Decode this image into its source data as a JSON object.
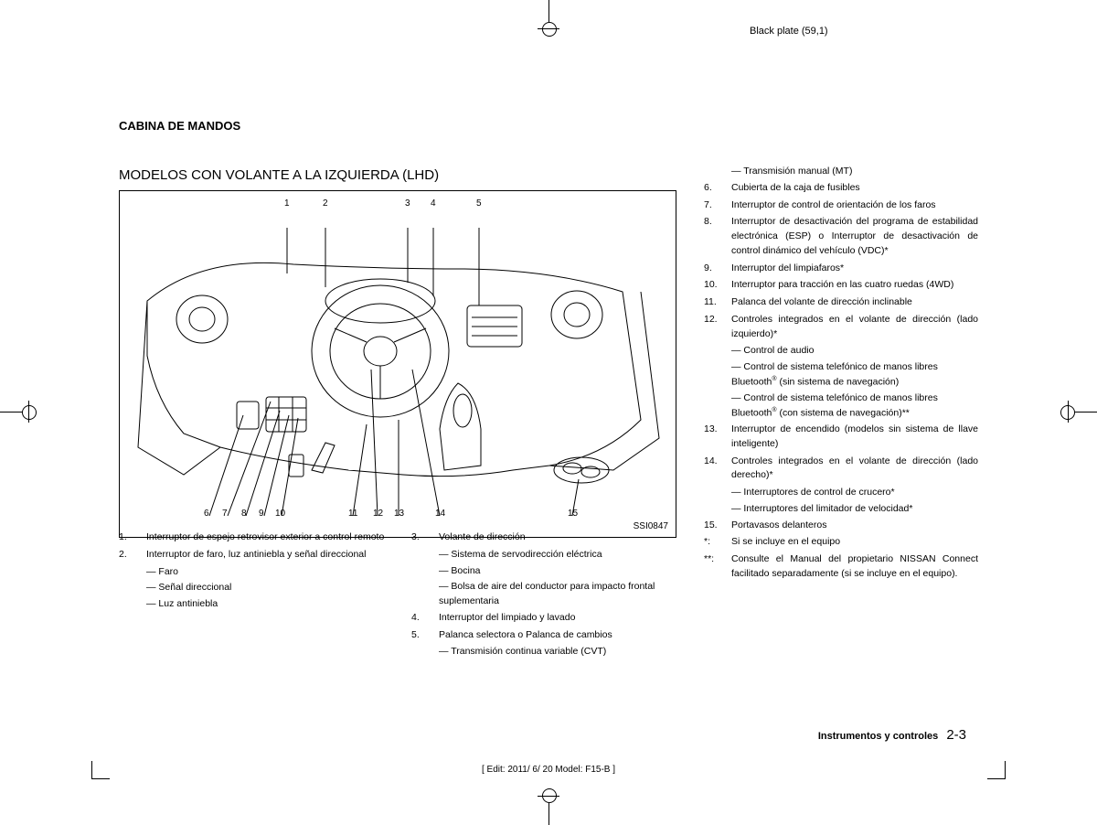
{
  "header": {
    "black_plate": "Black plate (59,1)"
  },
  "titles": {
    "section": "CABINA DE MANDOS",
    "subsection": "MODELOS CON VOLANTE A LA IZQUIERDA (LHD)"
  },
  "figure": {
    "caption": "SSI0847",
    "top_callouts": [
      "1",
      "2",
      "3",
      "4",
      "5"
    ],
    "bottom_callouts": [
      "6",
      "7",
      "8",
      "9",
      "10",
      "11",
      "12",
      "13",
      "14",
      "15"
    ]
  },
  "legend_left": [
    {
      "num": "1.",
      "text": "Interruptor de espejo retrovisor exterior a control remoto"
    },
    {
      "num": "2.",
      "text": "Interruptor de faro, luz antiniebla y señal direccional",
      "subs": [
        "Faro",
        "Señal direccional",
        "Luz antiniebla"
      ]
    }
  ],
  "legend_mid": [
    {
      "num": "3.",
      "text": "Volante de dirección",
      "subs": [
        "Sistema de servodirección eléctrica",
        "Bocina",
        "Bolsa de aire del conductor para impacto frontal suplementaria"
      ]
    },
    {
      "num": "4.",
      "text": "Interruptor del limpiado y lavado"
    },
    {
      "num": "5.",
      "text": "Palanca selectora o Palanca de cambios",
      "subs": [
        "Transmisión continua variable (CVT)"
      ]
    }
  ],
  "legend_right": [
    {
      "num": "",
      "text": "",
      "subs": [
        "Transmisión manual (MT)"
      ]
    },
    {
      "num": "6.",
      "text": "Cubierta de la caja de fusibles"
    },
    {
      "num": "7.",
      "text": "Interruptor de control de orientación de los faros"
    },
    {
      "num": "8.",
      "text": "Interruptor de desactivación del programa de estabilidad electrónica (ESP) o Interruptor de desactivación de control dinámico del vehículo (VDC)*"
    },
    {
      "num": "9.",
      "text": "Interruptor del limpiafaros*"
    },
    {
      "num": "10.",
      "text": "Interruptor para tracción en las cuatro ruedas (4WD)"
    },
    {
      "num": "11.",
      "text": "Palanca del volante de dirección inclinable"
    },
    {
      "num": "12.",
      "text": "Controles integrados en el volante de dirección (lado izquierdo)*",
      "subs": [
        "Control de audio",
        "Control de sistema telefónico de manos libres Bluetooth® (sin sistema de navegación)",
        "Control de sistema telefónico de manos libres Bluetooth® (con sistema de navegación)**"
      ]
    },
    {
      "num": "13.",
      "text": "Interruptor de encendido (modelos sin sistema de llave inteligente)"
    },
    {
      "num": "14.",
      "text": "Controles integrados en el volante de dirección (lado derecho)*",
      "subs": [
        "Interruptores de control de crucero*",
        "Interruptores del limitador de velocidad*"
      ]
    },
    {
      "num": "15.",
      "text": "Portavasos delanteros"
    },
    {
      "num": "*:",
      "text": "Si se incluye en el equipo"
    },
    {
      "num": "**:",
      "text": "Consulte el Manual del propietario NISSAN Connect facilitado separadamente (si se incluye en el equipo)."
    }
  ],
  "footer": {
    "chapter": "Instrumentos y controles",
    "page": "2-3",
    "edit": "[ Edit: 2011/ 6/ 20   Model: F15-B ]"
  }
}
